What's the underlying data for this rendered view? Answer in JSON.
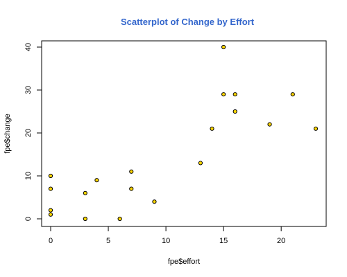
{
  "chart_data": {
    "type": "scatter",
    "title": "Scatterplot of Change by Effort",
    "xlabel": "fpe$effort",
    "ylabel": "fpe$change",
    "xlim": [
      0,
      23
    ],
    "ylim": [
      0,
      40
    ],
    "x_ticks": [
      0,
      5,
      10,
      15,
      20
    ],
    "x_tick_labels": [
      "0",
      "5",
      "10",
      "15",
      "20"
    ],
    "y_ticks": [
      0,
      10,
      20,
      30,
      40
    ],
    "y_tick_labels": [
      "0",
      "10",
      "20",
      "30",
      "40"
    ],
    "grid": false,
    "legend": "none",
    "colors": {
      "title": "#3366cc",
      "point_fill": "#ffd700",
      "point_stroke": "#000000",
      "axis": "#000000"
    },
    "points": [
      {
        "x": 0,
        "y": 1
      },
      {
        "x": 0,
        "y": 2
      },
      {
        "x": 0,
        "y": 7
      },
      {
        "x": 0,
        "y": 10
      },
      {
        "x": 3,
        "y": 0
      },
      {
        "x": 3,
        "y": 6
      },
      {
        "x": 4,
        "y": 9
      },
      {
        "x": 6,
        "y": 0
      },
      {
        "x": 7,
        "y": 7
      },
      {
        "x": 7,
        "y": 11
      },
      {
        "x": 9,
        "y": 4
      },
      {
        "x": 13,
        "y": 13
      },
      {
        "x": 14,
        "y": 21
      },
      {
        "x": 15,
        "y": 29
      },
      {
        "x": 15,
        "y": 40
      },
      {
        "x": 16,
        "y": 25
      },
      {
        "x": 16,
        "y": 29
      },
      {
        "x": 19,
        "y": 22
      },
      {
        "x": 21,
        "y": 29
      },
      {
        "x": 23,
        "y": 21
      }
    ]
  }
}
